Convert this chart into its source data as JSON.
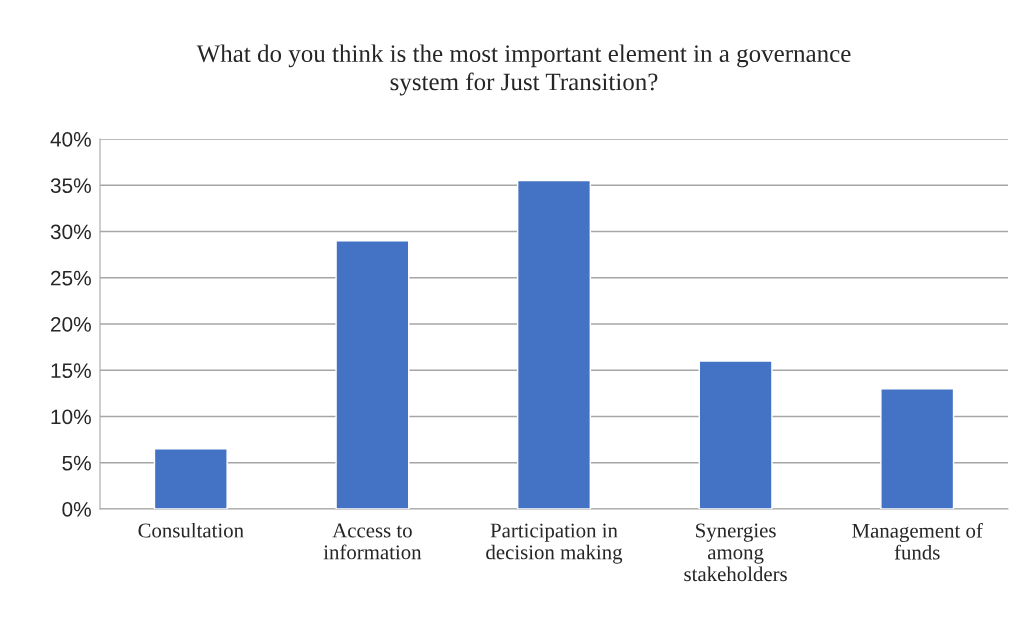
{
  "chart_data": {
    "type": "bar",
    "title": "What do you think is the most important element in a governance\nsystem for Just Transition?",
    "categories": [
      "Consultation",
      "Access to\ninformation",
      "Participation in\ndecision making",
      "Synergies\namong\nstakeholders",
      "Management of\nfunds"
    ],
    "values": [
      6.5,
      29,
      35.5,
      16,
      13
    ],
    "color": "#4472c4",
    "ylim": [
      0,
      40
    ],
    "yticks": [
      {
        "value": 0,
        "label": "0%"
      },
      {
        "value": 5,
        "label": "5%"
      },
      {
        "value": 10,
        "label": "10%"
      },
      {
        "value": 15,
        "label": "15%"
      },
      {
        "value": 20,
        "label": "20%"
      },
      {
        "value": 25,
        "label": "25%"
      },
      {
        "value": 30,
        "label": "30%"
      },
      {
        "value": 35,
        "label": "35%"
      },
      {
        "value": 40,
        "label": "40%"
      }
    ],
    "grid": "y",
    "legend": false
  }
}
